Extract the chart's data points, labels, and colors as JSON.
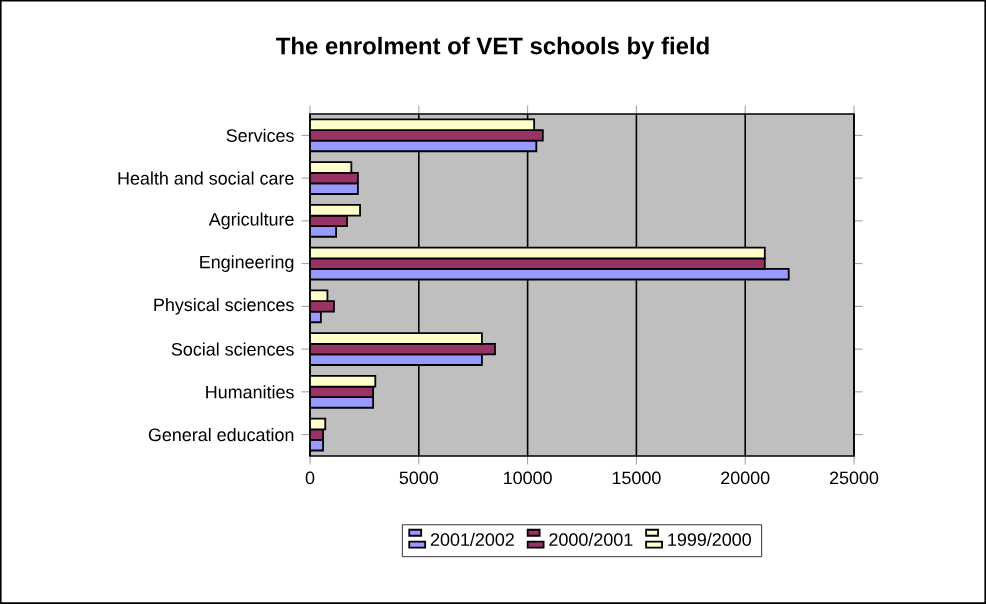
{
  "chart_data": {
    "type": "bar",
    "orientation": "horizontal",
    "title": "The enrolment of VET schools by field",
    "categories": [
      "Services",
      "Health and social care",
      "Agriculture",
      "Engineering",
      "Physical sciences",
      "Social sciences",
      "Humanities",
      "General education"
    ],
    "series": [
      {
        "name": "2001/2002",
        "color": "#9999ff",
        "values": [
          10400,
          2200,
          1200,
          22000,
          500,
          7900,
          2900,
          600
        ]
      },
      {
        "name": "2000/2001",
        "color": "#993366",
        "values": [
          10700,
          2200,
          1700,
          20900,
          1100,
          8500,
          2900,
          600
        ]
      },
      {
        "name": "1999/2000",
        "color": "#ffffcc",
        "values": [
          10300,
          1900,
          2300,
          20900,
          800,
          7900,
          3000,
          700
        ]
      }
    ],
    "xlim": [
      0,
      25000
    ],
    "xticks": [
      0,
      5000,
      10000,
      15000,
      20000,
      25000
    ],
    "grid": "x",
    "legend": "bottom"
  }
}
